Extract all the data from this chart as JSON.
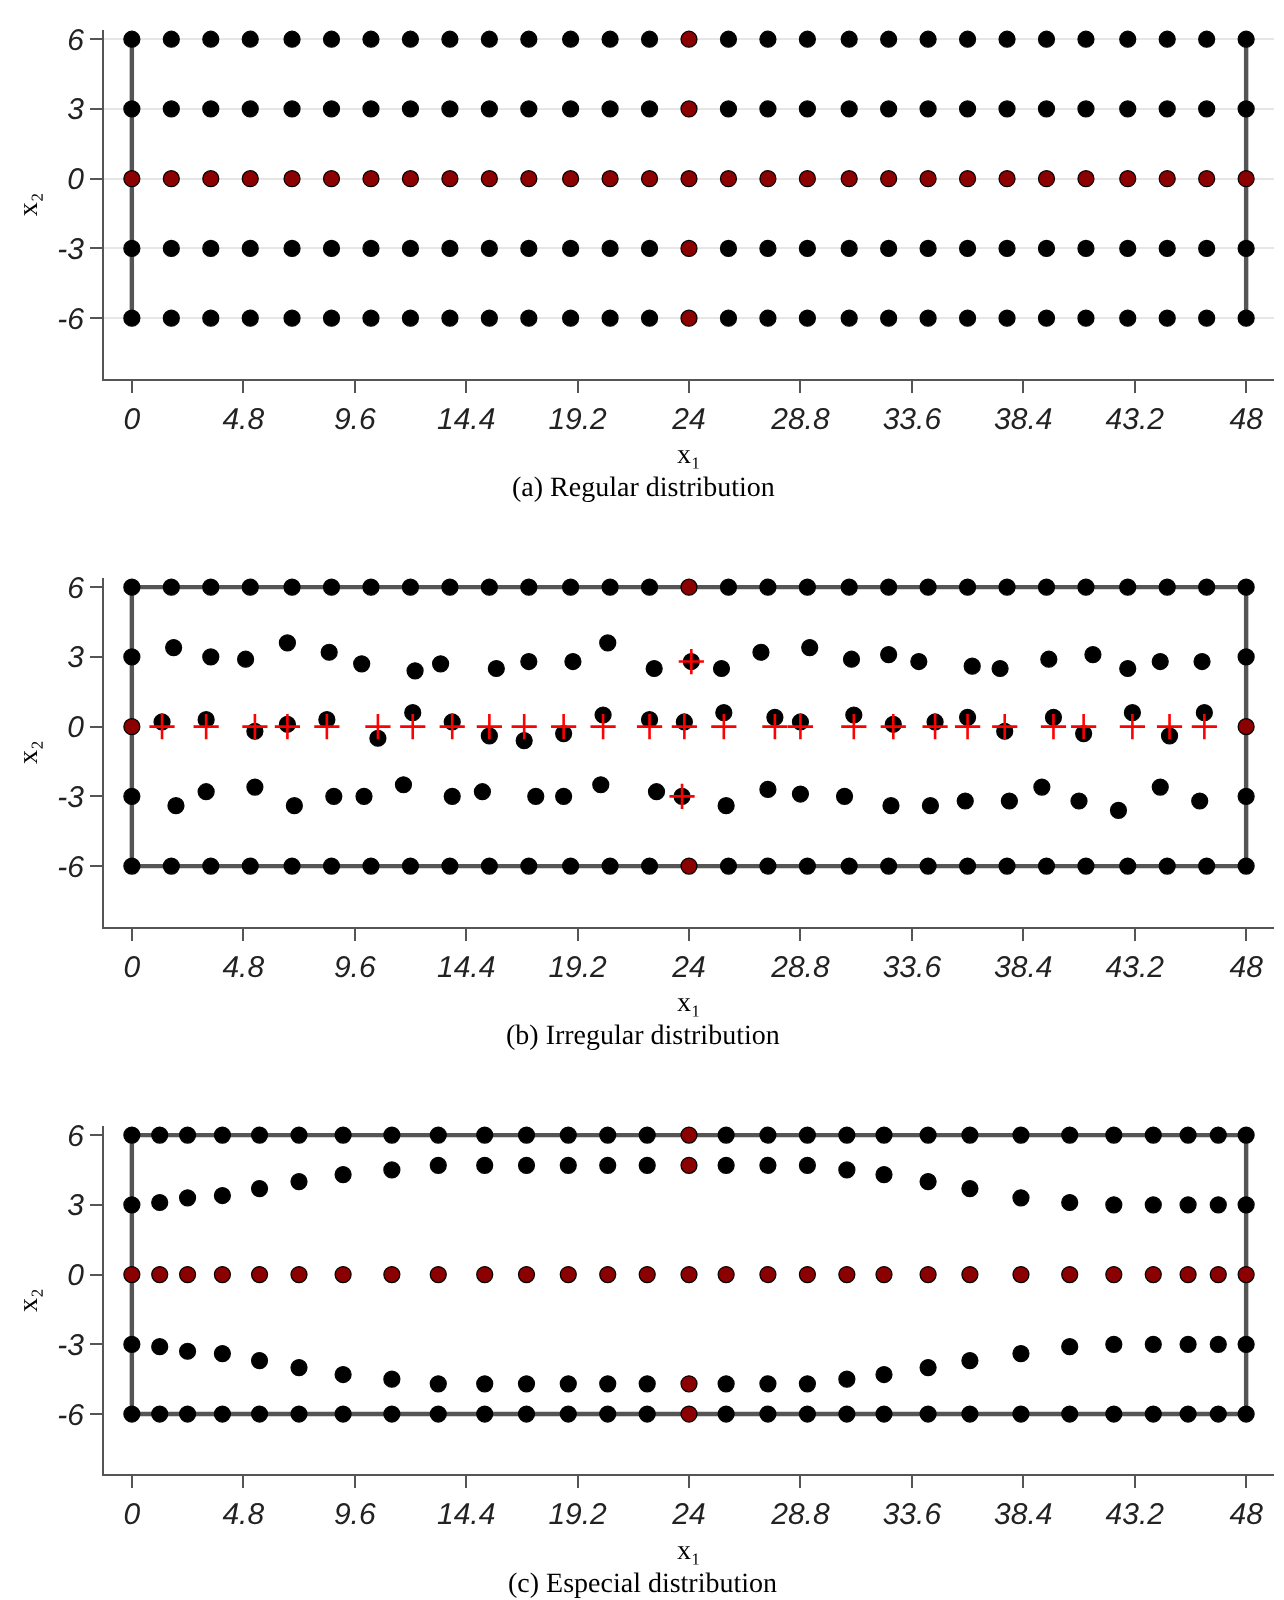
{
  "chart_data": [
    {
      "type": "scatter",
      "title": "(a) Regular distribution",
      "xlabel": "x₁",
      "ylabel": "x₂",
      "x": [
        0,
        1.7,
        3.4,
        5.1,
        6.9,
        8.6,
        10.3,
        12,
        13.7,
        15.4,
        17.1,
        18.9,
        20.6,
        22.3,
        24,
        25.7,
        27.4,
        29.1,
        30.9,
        32.6,
        34.3,
        36,
        37.7,
        39.4,
        41.1,
        42.9,
        44.6,
        46.3,
        48
      ],
      "xlim": [
        -1.2,
        49.2
      ],
      "ylim": [
        -8.6,
        6.4
      ],
      "xticks": [
        0,
        4.8,
        9.6,
        14.4,
        19.2,
        24,
        28.8,
        33.6,
        38.4,
        43.2,
        48
      ],
      "yticks": [
        6,
        3,
        0,
        -3,
        -6
      ],
      "grid": "y",
      "ref_lines": [
        {
          "axis": "x",
          "value": 0,
          "color": "#555555"
        },
        {
          "axis": "x",
          "value": 48,
          "color": "#555555"
        }
      ],
      "series": [
        {
          "type": "scatter",
          "color": "#000000",
          "marker": "circle",
          "values": [
            6,
            6,
            6,
            6,
            6,
            6,
            6,
            6,
            6,
            6,
            6,
            6,
            6,
            6,
            null,
            6,
            6,
            6,
            6,
            6,
            6,
            6,
            6,
            6,
            6,
            6,
            6,
            6,
            6
          ]
        },
        {
          "type": "scatter",
          "color": "#000000",
          "marker": "circle",
          "values": [
            3,
            3,
            3,
            3,
            3,
            3,
            3,
            3,
            3,
            3,
            3,
            3,
            3,
            3,
            null,
            3,
            3,
            3,
            3,
            3,
            3,
            3,
            3,
            3,
            3,
            3,
            3,
            3,
            3
          ]
        },
        {
          "type": "scatter",
          "color": "#000000",
          "marker": "circle",
          "values": [
            -3,
            -3,
            -3,
            -3,
            -3,
            -3,
            -3,
            -3,
            -3,
            -3,
            -3,
            -3,
            -3,
            -3,
            null,
            -3,
            -3,
            -3,
            -3,
            -3,
            -3,
            -3,
            -3,
            -3,
            -3,
            -3,
            -3,
            -3,
            -3
          ]
        },
        {
          "type": "scatter",
          "color": "#000000",
          "marker": "circle",
          "values": [
            -6,
            -6,
            -6,
            -6,
            -6,
            -6,
            -6,
            -6,
            -6,
            -6,
            -6,
            -6,
            -6,
            -6,
            null,
            -6,
            -6,
            -6,
            -6,
            -6,
            -6,
            -6,
            -6,
            -6,
            -6,
            -6,
            -6,
            -6,
            -6
          ]
        },
        {
          "type": "scatter",
          "color": "#8b0000",
          "marker": "circle",
          "values": [
            0,
            0,
            0,
            0,
            0,
            0,
            0,
            0,
            0,
            0,
            0,
            0,
            0,
            0,
            0,
            0,
            0,
            0,
            0,
            0,
            0,
            0,
            0,
            0,
            0,
            0,
            0,
            0,
            0
          ]
        },
        {
          "color": "#8b0000",
          "marker": "circle",
          "x": [
            24,
            24,
            24,
            24
          ],
          "values": [
            6,
            3,
            -3,
            -6
          ]
        }
      ]
    },
    {
      "type": "scatter",
      "title": "(b) Irregular distribution",
      "xlabel": "x₁",
      "ylabel": "x₂",
      "x": [
        0,
        1.7,
        3.4,
        5.1,
        6.9,
        8.6,
        10.3,
        12,
        13.7,
        15.4,
        17.1,
        18.9,
        20.6,
        22.3,
        24,
        25.7,
        27.4,
        29.1,
        30.9,
        32.6,
        34.3,
        36,
        37.7,
        39.4,
        41.1,
        42.9,
        44.6,
        46.3,
        48
      ],
      "xlim": [
        -1.2,
        49.2
      ],
      "ylim": [
        -8.6,
        6.4
      ],
      "xticks": [
        0,
        4.8,
        9.6,
        14.4,
        19.2,
        24,
        28.8,
        33.6,
        38.4,
        43.2,
        48
      ],
      "yticks": [
        6,
        3,
        0,
        -3,
        -6
      ],
      "ref_lines": [
        {
          "axis": "x",
          "value": 0,
          "color": "#555555"
        },
        {
          "axis": "x",
          "value": 48,
          "color": "#555555"
        },
        {
          "axis": "y",
          "value": 6,
          "color": "#555555"
        },
        {
          "axis": "y",
          "value": -6,
          "color": "#555555"
        }
      ],
      "series": [
        {
          "type": "scatter",
          "color": "#000000",
          "marker": "circle",
          "values": [
            6,
            6,
            6,
            6,
            6,
            6,
            6,
            6,
            6,
            6,
            6,
            6,
            6,
            6,
            null,
            6,
            6,
            6,
            6,
            6,
            6,
            6,
            6,
            6,
            6,
            6,
            6,
            6,
            6
          ]
        },
        {
          "type": "scatter",
          "color": "#000000",
          "marker": "circle",
          "x": [
            0,
            1.8,
            3.4,
            4.9,
            6.7,
            8.5,
            9.9,
            12.2,
            13.3,
            15.7,
            17.1,
            19,
            20.5,
            22.5,
            24.1,
            25.4,
            27.1,
            29.2,
            31,
            32.6,
            33.9,
            36.2,
            37.4,
            39.5,
            41.4,
            42.9,
            44.3,
            46.1,
            48
          ],
          "values": [
            3,
            3.4,
            3,
            2.9,
            3.6,
            3.2,
            2.7,
            2.4,
            2.7,
            2.5,
            2.8,
            2.8,
            3.6,
            2.5,
            2.8,
            2.5,
            3.2,
            3.4,
            2.9,
            3.1,
            2.8,
            2.6,
            2.5,
            2.9,
            3.1,
            2.5,
            2.8,
            2.8,
            3
          ]
        },
        {
          "type": "scatter",
          "color": "#000000",
          "marker": "circle",
          "x": [
            1.3,
            3.2,
            5.3,
            6.7,
            8.4,
            10.6,
            12.1,
            13.8,
            15.4,
            16.9,
            18.6,
            20.3,
            22.3,
            23.8,
            25.5,
            27.7,
            28.8,
            31.1,
            32.8,
            34.6,
            36,
            37.6,
            39.7,
            41,
            43.1,
            44.7,
            46.2
          ],
          "values": [
            0.2,
            0.3,
            -0.2,
            0.1,
            0.3,
            -0.5,
            0.6,
            0.2,
            -0.4,
            -0.6,
            -0.3,
            0.5,
            0.3,
            0.2,
            0.6,
            0.4,
            0.2,
            0.5,
            0.1,
            0.2,
            0.4,
            -0.2,
            0.4,
            -0.3,
            0.6,
            -0.4,
            0.6
          ]
        },
        {
          "type": "scatter",
          "color": "#000000",
          "marker": "circle",
          "x": [
            0,
            1.9,
            3.2,
            5.3,
            7,
            8.7,
            10,
            11.7,
            13.8,
            15.1,
            17.4,
            18.6,
            20.2,
            22.6,
            23.7,
            25.6,
            27.4,
            28.8,
            30.7,
            32.7,
            34.4,
            35.9,
            37.8,
            39.2,
            40.8,
            42.5,
            44.3,
            46,
            48
          ],
          "values": [
            -3,
            -3.4,
            -2.8,
            -2.6,
            -3.4,
            -3,
            -3,
            -2.5,
            -3,
            -2.8,
            -3,
            -3,
            -2.5,
            -2.8,
            -3,
            -3.4,
            -2.7,
            -2.9,
            -3,
            -3.4,
            -3.4,
            -3.2,
            -3.2,
            -2.6,
            -3.2,
            -3.6,
            -2.6,
            -3.2,
            -3
          ]
        },
        {
          "type": "scatter",
          "color": "#000000",
          "marker": "circle",
          "values": [
            -6,
            -6,
            -6,
            -6,
            -6,
            -6,
            -6,
            -6,
            -6,
            -6,
            -6,
            -6,
            -6,
            -6,
            null,
            -6,
            -6,
            -6,
            -6,
            -6,
            -6,
            -6,
            -6,
            -6,
            -6,
            -6,
            -6,
            -6,
            -6
          ]
        },
        {
          "type": "scatter",
          "color": "#8b0000",
          "marker": "circle",
          "x": [
            0,
            48,
            24,
            24
          ],
          "values": [
            0,
            0,
            6,
            -6
          ]
        },
        {
          "color": "#ff0000",
          "marker": "cross",
          "x": [
            1.3,
            3.2,
            5.3,
            6.7,
            8.4,
            10.6,
            12.1,
            13.8,
            15.4,
            16.9,
            18.6,
            20.3,
            22.3,
            23.8,
            25.5,
            27.7,
            28.8,
            31.1,
            32.8,
            34.6,
            36,
            37.6,
            39.7,
            41,
            43.1,
            44.7,
            46.2,
            24.1,
            23.7
          ],
          "values": [
            0,
            0,
            0,
            0,
            0,
            0,
            0,
            0,
            0,
            0,
            0,
            0,
            0,
            0,
            0,
            0,
            0,
            0,
            0,
            0,
            0,
            0,
            0,
            0,
            0,
            0,
            0,
            2.8,
            -3
          ]
        }
      ]
    },
    {
      "type": "scatter",
      "title": "(c) Especial distribution",
      "xlabel": "x₁",
      "ylabel": "x₂",
      "x": [
        0,
        1.2,
        2.4,
        3.9,
        5.5,
        7.2,
        9.1,
        11.2,
        13.2,
        15.2,
        17,
        18.8,
        20.5,
        22.2,
        24,
        25.6,
        27.4,
        29.1,
        30.8,
        32.4,
        34.3,
        36.1,
        38.3,
        40.4,
        42.3,
        44,
        45.5,
        46.8,
        48
      ],
      "xlim": [
        -1.2,
        49.2
      ],
      "ylim": [
        -8.6,
        6.4
      ],
      "xticks": [
        0,
        4.8,
        9.6,
        14.4,
        19.2,
        24,
        28.8,
        33.6,
        38.4,
        43.2,
        48
      ],
      "yticks": [
        6,
        3,
        0,
        -3,
        -6
      ],
      "ref_lines": [
        {
          "axis": "x",
          "value": 0,
          "color": "#555555"
        },
        {
          "axis": "x",
          "value": 48,
          "color": "#555555"
        },
        {
          "axis": "y",
          "value": 6,
          "color": "#555555"
        },
        {
          "axis": "y",
          "value": -6,
          "color": "#555555"
        }
      ],
      "series": [
        {
          "type": "scatter",
          "color": "#000000",
          "marker": "circle",
          "values": [
            6,
            6,
            6,
            6,
            6,
            6,
            6,
            6,
            6,
            6,
            6,
            6,
            6,
            6,
            null,
            6,
            6,
            6,
            6,
            6,
            6,
            6,
            6,
            6,
            6,
            6,
            6,
            6,
            6
          ]
        },
        {
          "type": "scatter",
          "color": "#000000",
          "marker": "circle",
          "values": [
            3,
            3.1,
            3.3,
            3.4,
            3.7,
            4,
            4.3,
            4.5,
            4.7,
            4.7,
            4.7,
            4.7,
            4.7,
            4.7,
            null,
            4.7,
            4.7,
            4.7,
            4.5,
            4.3,
            4,
            3.7,
            3.3,
            3.1,
            3,
            3,
            3,
            3,
            3
          ]
        },
        {
          "type": "scatter",
          "color": "#000000",
          "marker": "circle",
          "values": [
            -3,
            -3.1,
            -3.3,
            -3.4,
            -3.7,
            -4,
            -4.3,
            -4.5,
            -4.7,
            -4.7,
            -4.7,
            -4.7,
            -4.7,
            -4.7,
            null,
            -4.7,
            -4.7,
            -4.7,
            -4.5,
            -4.3,
            -4,
            -3.7,
            -3.4,
            -3.1,
            -3,
            -3,
            -3,
            -3,
            -3
          ]
        },
        {
          "type": "scatter",
          "color": "#000000",
          "marker": "circle",
          "values": [
            -6,
            -6,
            -6,
            -6,
            -6,
            -6,
            -6,
            -6,
            -6,
            -6,
            -6,
            -6,
            -6,
            -6,
            null,
            -6,
            -6,
            -6,
            -6,
            -6,
            -6,
            -6,
            -6,
            -6,
            -6,
            -6,
            -6,
            -6,
            -6
          ]
        },
        {
          "type": "scatter",
          "color": "#8b0000",
          "marker": "circle",
          "values": [
            0,
            0,
            0,
            0,
            0,
            0,
            0,
            0,
            0,
            0,
            0,
            0,
            0,
            0,
            0,
            0,
            0,
            0,
            0,
            0,
            0,
            0,
            0,
            0,
            0,
            0,
            0,
            0,
            0
          ]
        },
        {
          "color": "#8b0000",
          "marker": "circle",
          "x": [
            24,
            24,
            24,
            24
          ],
          "values": [
            6,
            4.7,
            -4.7,
            -6
          ]
        }
      ]
    }
  ]
}
